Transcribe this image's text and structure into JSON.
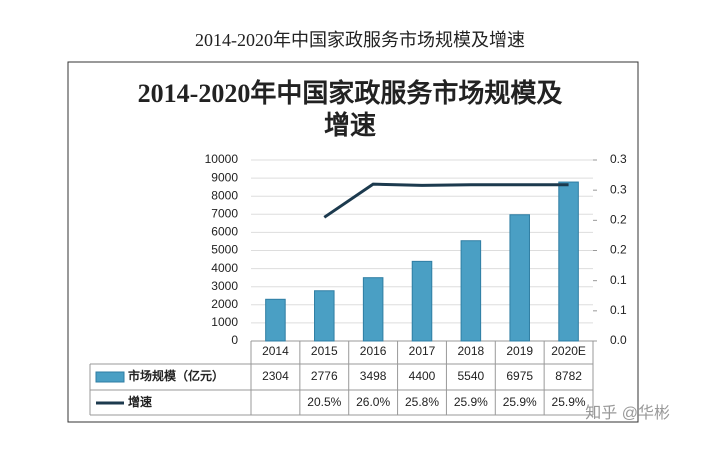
{
  "page_title": "2014-2020年中国家政服务市场规模及增速",
  "watermark": "知乎 @华彬",
  "chart_data": {
    "type": "bar-line",
    "title": "2014-2020年中国家政服务市场规模及增速",
    "categories": [
      "2014",
      "2015",
      "2016",
      "2017",
      "2018",
      "2019",
      "2020E"
    ],
    "series": [
      {
        "name": "市场规模（亿元）",
        "type": "bar",
        "color": "#4a9fc4",
        "values": [
          2304,
          2776,
          3498,
          4400,
          5540,
          6975,
          8782
        ]
      },
      {
        "name": "增速",
        "type": "line",
        "axis": "y2",
        "color": "#1c3a4e",
        "values": [
          null,
          0.205,
          0.26,
          0.258,
          0.259,
          0.259,
          0.259
        ],
        "value_labels": [
          null,
          "20.5%",
          "26.0%",
          "25.8%",
          "25.9%",
          "25.9%",
          "25.9%"
        ]
      }
    ],
    "ylim": [
      0,
      10000
    ],
    "yticks": [
      0,
      1000,
      2000,
      3000,
      4000,
      5000,
      6000,
      7000,
      8000,
      9000,
      10000
    ],
    "y2lim": [
      0,
      0.3
    ],
    "y2ticks": [
      {
        "value": 0,
        "label": "0.0"
      },
      {
        "value": 0.05,
        "label": "0.1"
      },
      {
        "value": 0.1,
        "label": "0.1"
      },
      {
        "value": 0.15,
        "label": "0.2"
      },
      {
        "value": 0.2,
        "label": "0.2"
      },
      {
        "value": 0.25,
        "label": "0.3"
      },
      {
        "value": 0.3,
        "label": "0.3"
      }
    ],
    "grid": true
  }
}
